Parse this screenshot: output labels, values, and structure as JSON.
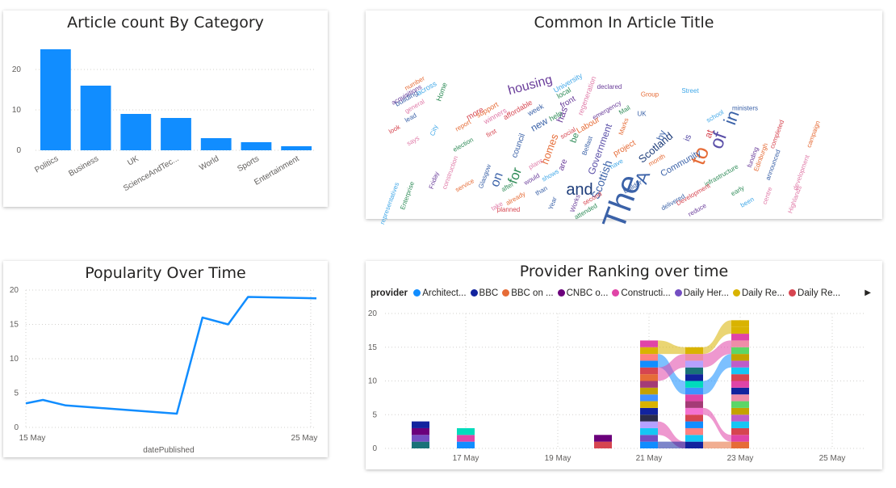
{
  "chart_data": [
    {
      "id": "category",
      "type": "bar",
      "title": "Article count By Category",
      "categories": [
        "Politics",
        "Business",
        "UK",
        "ScienceAndTec...",
        "World",
        "Sports",
        "Entertainment"
      ],
      "values": [
        25,
        16,
        9,
        8,
        3,
        2,
        1
      ],
      "ylim": [
        0,
        27
      ],
      "yticks": [
        0,
        10,
        20
      ],
      "grid": true,
      "color": "#118DFF"
    },
    {
      "id": "wordcloud",
      "type": "wordcloud",
      "title": "Common In Article Title",
      "words": [
        {
          "text": "The",
          "weight": 40,
          "color": "#3B62A8",
          "rotate": -70
        },
        {
          "text": "to",
          "weight": 26,
          "color": "#E66C37",
          "rotate": -70
        },
        {
          "text": "of",
          "weight": 24,
          "color": "#5A4FA8",
          "rotate": -70
        },
        {
          "text": "in",
          "weight": 22,
          "color": "#3B62A8",
          "rotate": -70
        },
        {
          "text": "and",
          "weight": 20,
          "color": "#1E3D7A",
          "rotate": 0
        },
        {
          "text": "A",
          "weight": 22,
          "color": "#3B62A8",
          "rotate": -70
        },
        {
          "text": "for",
          "weight": 17,
          "color": "#2E8B57",
          "rotate": -70
        },
        {
          "text": "on",
          "weight": 16,
          "color": "#3B62A8",
          "rotate": -70
        },
        {
          "text": "housing",
          "weight": 16,
          "color": "#6A3D9A",
          "rotate": -15
        },
        {
          "text": "Scottish",
          "weight": 14,
          "color": "#3B62A8",
          "rotate": -70
        },
        {
          "text": "Scotland",
          "weight": 13,
          "color": "#1E3D7A",
          "rotate": -40
        },
        {
          "text": "Government",
          "weight": 12,
          "color": "#5A4FA8",
          "rotate": -70
        },
        {
          "text": "homes",
          "weight": 13,
          "color": "#E66C37",
          "rotate": -70
        },
        {
          "text": "new",
          "weight": 12,
          "color": "#3B62A8",
          "rotate": -30
        },
        {
          "text": "has",
          "weight": 12,
          "color": "#6A3D9A",
          "rotate": -70
        },
        {
          "text": "by",
          "weight": 12,
          "color": "#3B62A8",
          "rotate": -70
        },
        {
          "text": "at",
          "weight": 12,
          "color": "#D64550",
          "rotate": -70
        },
        {
          "text": "be",
          "weight": 11,
          "color": "#2E8B57",
          "rotate": -70
        },
        {
          "text": "is",
          "weight": 11,
          "color": "#5A4FA8",
          "rotate": -70
        },
        {
          "text": "Community",
          "weight": 11,
          "color": "#3B62A8",
          "rotate": -30
        },
        {
          "text": "Labour",
          "weight": 10,
          "color": "#E66C37",
          "rotate": -30
        },
        {
          "text": "more",
          "weight": 10,
          "color": "#D64550",
          "rotate": -30
        },
        {
          "text": "project",
          "weight": 10,
          "color": "#E66C37",
          "rotate": -30
        },
        {
          "text": "are",
          "weight": 10,
          "color": "#6A3D9A",
          "rotate": -70
        },
        {
          "text": "council",
          "weight": 10,
          "color": "#3B62A8",
          "rotate": -70
        },
        {
          "text": "front",
          "weight": 10,
          "color": "#6A3D9A",
          "rotate": -30
        },
        {
          "text": "University",
          "weight": 9,
          "color": "#41A8E8",
          "rotate": -30
        },
        {
          "text": "regeneration",
          "weight": 9,
          "color": "#E07BA8",
          "rotate": -70
        },
        {
          "text": "local",
          "weight": 9,
          "color": "#2E8B57",
          "rotate": -30
        },
        {
          "text": "week",
          "weight": 9,
          "color": "#3B62A8",
          "rotate": -30
        },
        {
          "text": "help",
          "weight": 9,
          "color": "#2E8B57",
          "rotate": -30
        },
        {
          "text": "affordable",
          "weight": 9,
          "color": "#D64550",
          "rotate": -30
        },
        {
          "text": "winners",
          "weight": 9,
          "color": "#E07BA8",
          "rotate": -30
        },
        {
          "text": "support",
          "weight": 9,
          "color": "#E66C37",
          "rotate": -30
        },
        {
          "text": "building",
          "weight": 9,
          "color": "#3B62A8",
          "rotate": -30
        },
        {
          "text": "across",
          "weight": 9,
          "color": "#41A8E8",
          "rotate": -30
        },
        {
          "text": "Home",
          "weight": 9,
          "color": "#2E8B57",
          "rotate": -70
        },
        {
          "text": "number",
          "weight": 8,
          "color": "#E66C37",
          "rotate": -30
        },
        {
          "text": "general",
          "weight": 8,
          "color": "#E07BA8",
          "rotate": -30
        },
        {
          "text": "acquisitions",
          "weight": 8,
          "color": "#6A3D9A",
          "rotate": -30
        },
        {
          "text": "City",
          "weight": 8,
          "color": "#41A8E8",
          "rotate": -70
        },
        {
          "text": "lead",
          "weight": 8,
          "color": "#3B62A8",
          "rotate": -30
        },
        {
          "text": "look",
          "weight": 8,
          "color": "#D64550",
          "rotate": -30
        },
        {
          "text": "says",
          "weight": 8,
          "color": "#E07BA8",
          "rotate": -30
        },
        {
          "text": "report",
          "weight": 8,
          "color": "#E66C37",
          "rotate": -30
        },
        {
          "text": "election",
          "weight": 8,
          "color": "#2E8B57",
          "rotate": -30
        },
        {
          "text": "first",
          "weight": 8,
          "color": "#D64550",
          "rotate": -30
        },
        {
          "text": "Glasgow",
          "weight": 8,
          "color": "#3B62A8",
          "rotate": -70
        },
        {
          "text": "service",
          "weight": 8,
          "color": "#E66C37",
          "rotate": -30
        },
        {
          "text": "representatives",
          "weight": 8,
          "color": "#41A8E8",
          "rotate": -70
        },
        {
          "text": "Enterprise",
          "weight": 8,
          "color": "#2E8B57",
          "rotate": -70
        },
        {
          "text": "Friday",
          "weight": 8,
          "color": "#6A3D9A",
          "rotate": -70
        },
        {
          "text": "construction",
          "weight": 8,
          "color": "#E07BA8",
          "rotate": -70
        },
        {
          "text": "planned",
          "weight": 8,
          "color": "#D64550",
          "rotate": 0
        },
        {
          "text": "Year",
          "weight": 8,
          "color": "#3B62A8",
          "rotate": -70
        },
        {
          "text": "emergency",
          "weight": 8,
          "color": "#6A3D9A",
          "rotate": -30
        },
        {
          "text": "Group",
          "weight": 8,
          "color": "#E66C37",
          "rotate": 0
        },
        {
          "text": "UK",
          "weight": 8,
          "color": "#3B62A8",
          "rotate": 0
        },
        {
          "text": "declared",
          "weight": 8,
          "color": "#6A3D9A",
          "rotate": 0
        },
        {
          "text": "Street",
          "weight": 8,
          "color": "#41A8E8",
          "rotate": 0
        },
        {
          "text": "ministers",
          "weight": 8,
          "color": "#3B62A8",
          "rotate": 0
        },
        {
          "text": "school",
          "weight": 8,
          "color": "#41A8E8",
          "rotate": -30
        },
        {
          "text": "completed",
          "weight": 8,
          "color": "#D64550",
          "rotate": -70
        },
        {
          "text": "Edinburgh",
          "weight": 8,
          "color": "#E66C37",
          "rotate": -70
        },
        {
          "text": "funding",
          "weight": 8,
          "color": "#6A3D9A",
          "rotate": -70
        },
        {
          "text": "announced",
          "weight": 8,
          "color": "#3B62A8",
          "rotate": -70
        },
        {
          "text": "campaign",
          "weight": 8,
          "color": "#E66C37",
          "rotate": -70
        },
        {
          "text": "development",
          "weight": 8,
          "color": "#E07BA8",
          "rotate": -70
        },
        {
          "text": "infrastructure",
          "weight": 8,
          "color": "#2E8B57",
          "rotate": -30
        },
        {
          "text": "Development",
          "weight": 8,
          "color": "#D64550",
          "rotate": -30
        },
        {
          "text": "delivered",
          "weight": 8,
          "color": "#3B62A8",
          "rotate": -30
        },
        {
          "text": "reduce",
          "weight": 8,
          "color": "#6A3D9A",
          "rotate": -30
        },
        {
          "text": "centre",
          "weight": 8,
          "color": "#E07BA8",
          "rotate": -70
        },
        {
          "text": "Highlands",
          "weight": 8,
          "color": "#E07BA8",
          "rotate": -70
        },
        {
          "text": "been",
          "weight": 8,
          "color": "#41A8E8",
          "rotate": -30
        },
        {
          "text": "early",
          "weight": 8,
          "color": "#2E8B57",
          "rotate": -30
        },
        {
          "text": "Builder",
          "weight": 8,
          "color": "#3B62A8",
          "rotate": -30
        },
        {
          "text": "month",
          "weight": 8,
          "color": "#E66C37",
          "rotate": -30
        },
        {
          "text": "Works",
          "weight": 8,
          "color": "#6A3D9A",
          "rotate": -70
        },
        {
          "text": "second",
          "weight": 8,
          "color": "#D64550",
          "rotate": -30
        },
        {
          "text": "attended",
          "weight": 8,
          "color": "#2E8B57",
          "rotate": -30
        },
        {
          "text": "take",
          "weight": 8,
          "color": "#E07BA8",
          "rotate": -30
        },
        {
          "text": "than",
          "weight": 8,
          "color": "#3B62A8",
          "rotate": -30
        },
        {
          "text": "shows",
          "weight": 8,
          "color": "#41A8E8",
          "rotate": -30
        },
        {
          "text": "already",
          "weight": 8,
          "color": "#E66C37",
          "rotate": -30
        },
        {
          "text": "would",
          "weight": 8,
          "color": "#6A3D9A",
          "rotate": -30
        },
        {
          "text": "after",
          "weight": 8,
          "color": "#2E8B57",
          "rotate": -30
        },
        {
          "text": "social",
          "weight": 8,
          "color": "#D64550",
          "rotate": -30
        },
        {
          "text": "plans",
          "weight": 8,
          "color": "#E07BA8",
          "rotate": -30
        },
        {
          "text": "Belfast",
          "weight": 8,
          "color": "#3B62A8",
          "rotate": -70
        },
        {
          "text": "Marks",
          "weight": 8,
          "color": "#E66C37",
          "rotate": -70
        },
        {
          "text": "have",
          "weight": 8,
          "color": "#41A8E8",
          "rotate": -30
        },
        {
          "text": "Mail",
          "weight": 8,
          "color": "#2E8B57",
          "rotate": -30
        }
      ]
    },
    {
      "id": "popularity",
      "type": "line",
      "title": "Popularity Over Time",
      "xlabel": "datePublished",
      "x": [
        "15 May",
        "16 May",
        "17 May",
        "20 May",
        "21 May",
        "22 May",
        "23 May",
        "25 May"
      ],
      "x_days": [
        15,
        15.6,
        16.4,
        20.3,
        21.2,
        22.1,
        22.8,
        25.2
      ],
      "values": [
        3.5,
        4,
        3.2,
        2,
        16,
        15,
        19,
        18.8
      ],
      "xticks": [
        "15 May",
        "25 May"
      ],
      "xlim_days": [
        15,
        25.2
      ],
      "ylim": [
        0,
        20
      ],
      "yticks": [
        0,
        5,
        10,
        15,
        20
      ],
      "color": "#118DFF"
    },
    {
      "id": "provider",
      "type": "ribbon",
      "title": "Provider Ranking over time",
      "legend_title": "provider",
      "legend": [
        {
          "name": "Architect...",
          "color": "#118DFF"
        },
        {
          "name": "BBC",
          "color": "#12239E"
        },
        {
          "name": "BBC on ...",
          "color": "#E66C37"
        },
        {
          "name": "CNBC o...",
          "color": "#6B007B"
        },
        {
          "name": "Constructi...",
          "color": "#E044A7"
        },
        {
          "name": "Daily Her...",
          "color": "#744EC2"
        },
        {
          "name": "Daily Re...",
          "color": "#D9B300"
        },
        {
          "name": "Daily Re...",
          "color": "#D64550"
        }
      ],
      "xticks": [
        "17 May",
        "19 May",
        "21 May",
        "23 May",
        "25 May"
      ],
      "ylim": [
        0,
        20
      ],
      "yticks": [
        0,
        5,
        10,
        15,
        20
      ]
    }
  ]
}
